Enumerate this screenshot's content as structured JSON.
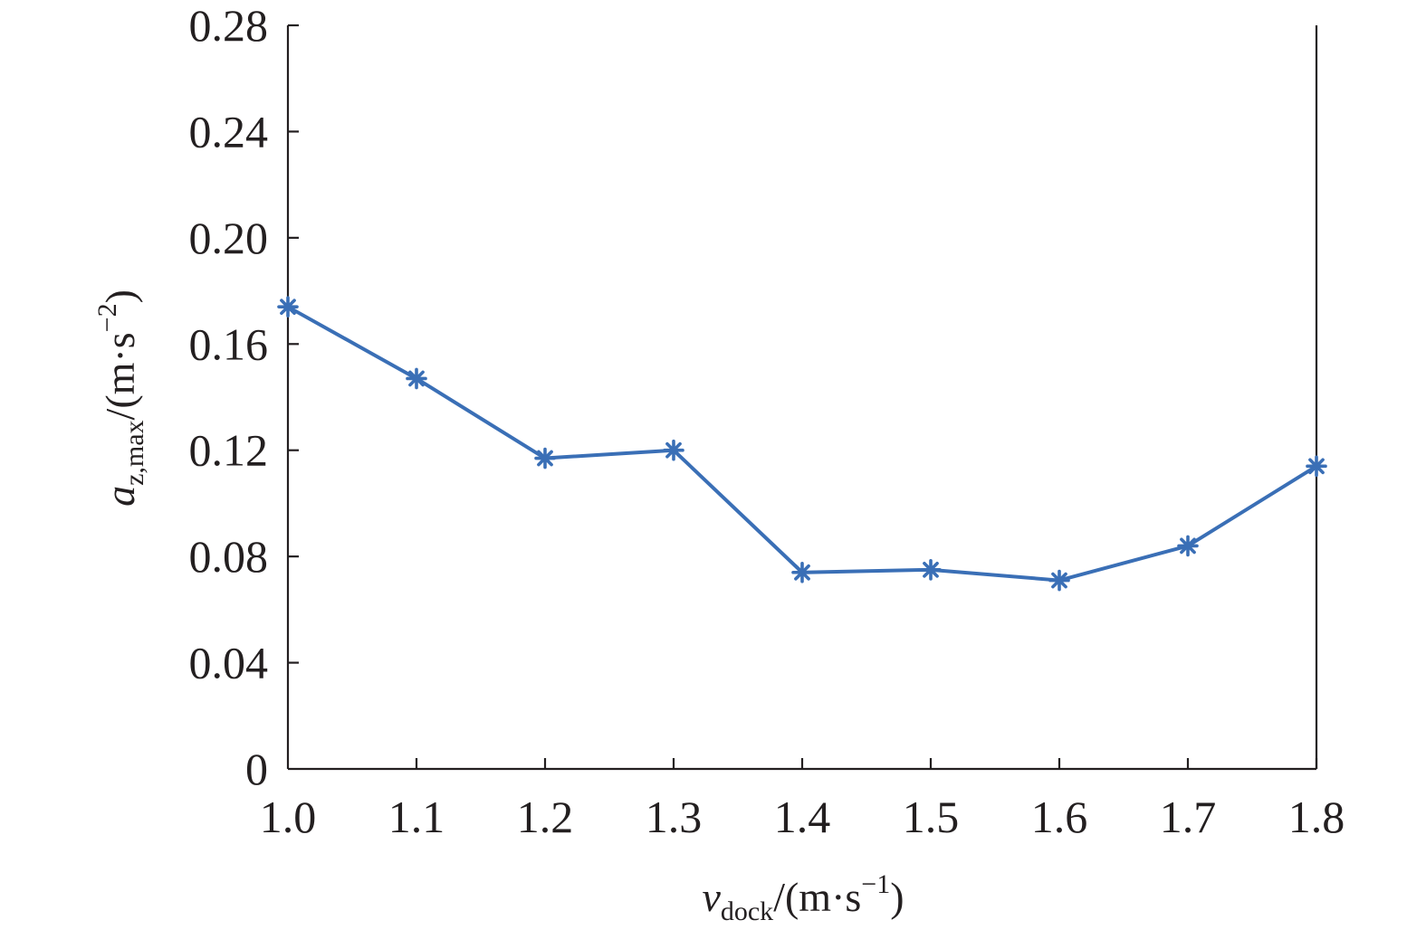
{
  "chart_data": {
    "type": "line",
    "x": [
      1.0,
      1.1,
      1.2,
      1.3,
      1.4,
      1.5,
      1.6,
      1.7,
      1.8
    ],
    "series": [
      {
        "values": [
          0.174,
          0.147,
          0.117,
          0.12,
          0.074,
          0.075,
          0.071,
          0.084,
          0.114
        ]
      }
    ],
    "xlabel": {
      "main": "v",
      "sub": "dock",
      "unit_open": "/(m·s",
      "sup": "−1",
      "unit_close": ")"
    },
    "ylabel": {
      "main": "a",
      "sub": "z,max",
      "unit_open": "/(m·s",
      "sup": "−2",
      "unit_close": ")"
    },
    "xlim": [
      1.0,
      1.8
    ],
    "ylim": [
      0,
      0.28
    ],
    "x_ticks": [
      "1.0",
      "1.1",
      "1.2",
      "1.3",
      "1.4",
      "1.5",
      "1.6",
      "1.7",
      "1.8"
    ],
    "y_ticks": [
      "0",
      "0.04",
      "0.08",
      "0.12",
      "0.16",
      "0.20",
      "0.24",
      "0.28"
    ],
    "marker": "asterisk",
    "grid": false,
    "frame": "box",
    "colors": {
      "series": "#3a6fb6",
      "axis": "#231f20"
    }
  }
}
